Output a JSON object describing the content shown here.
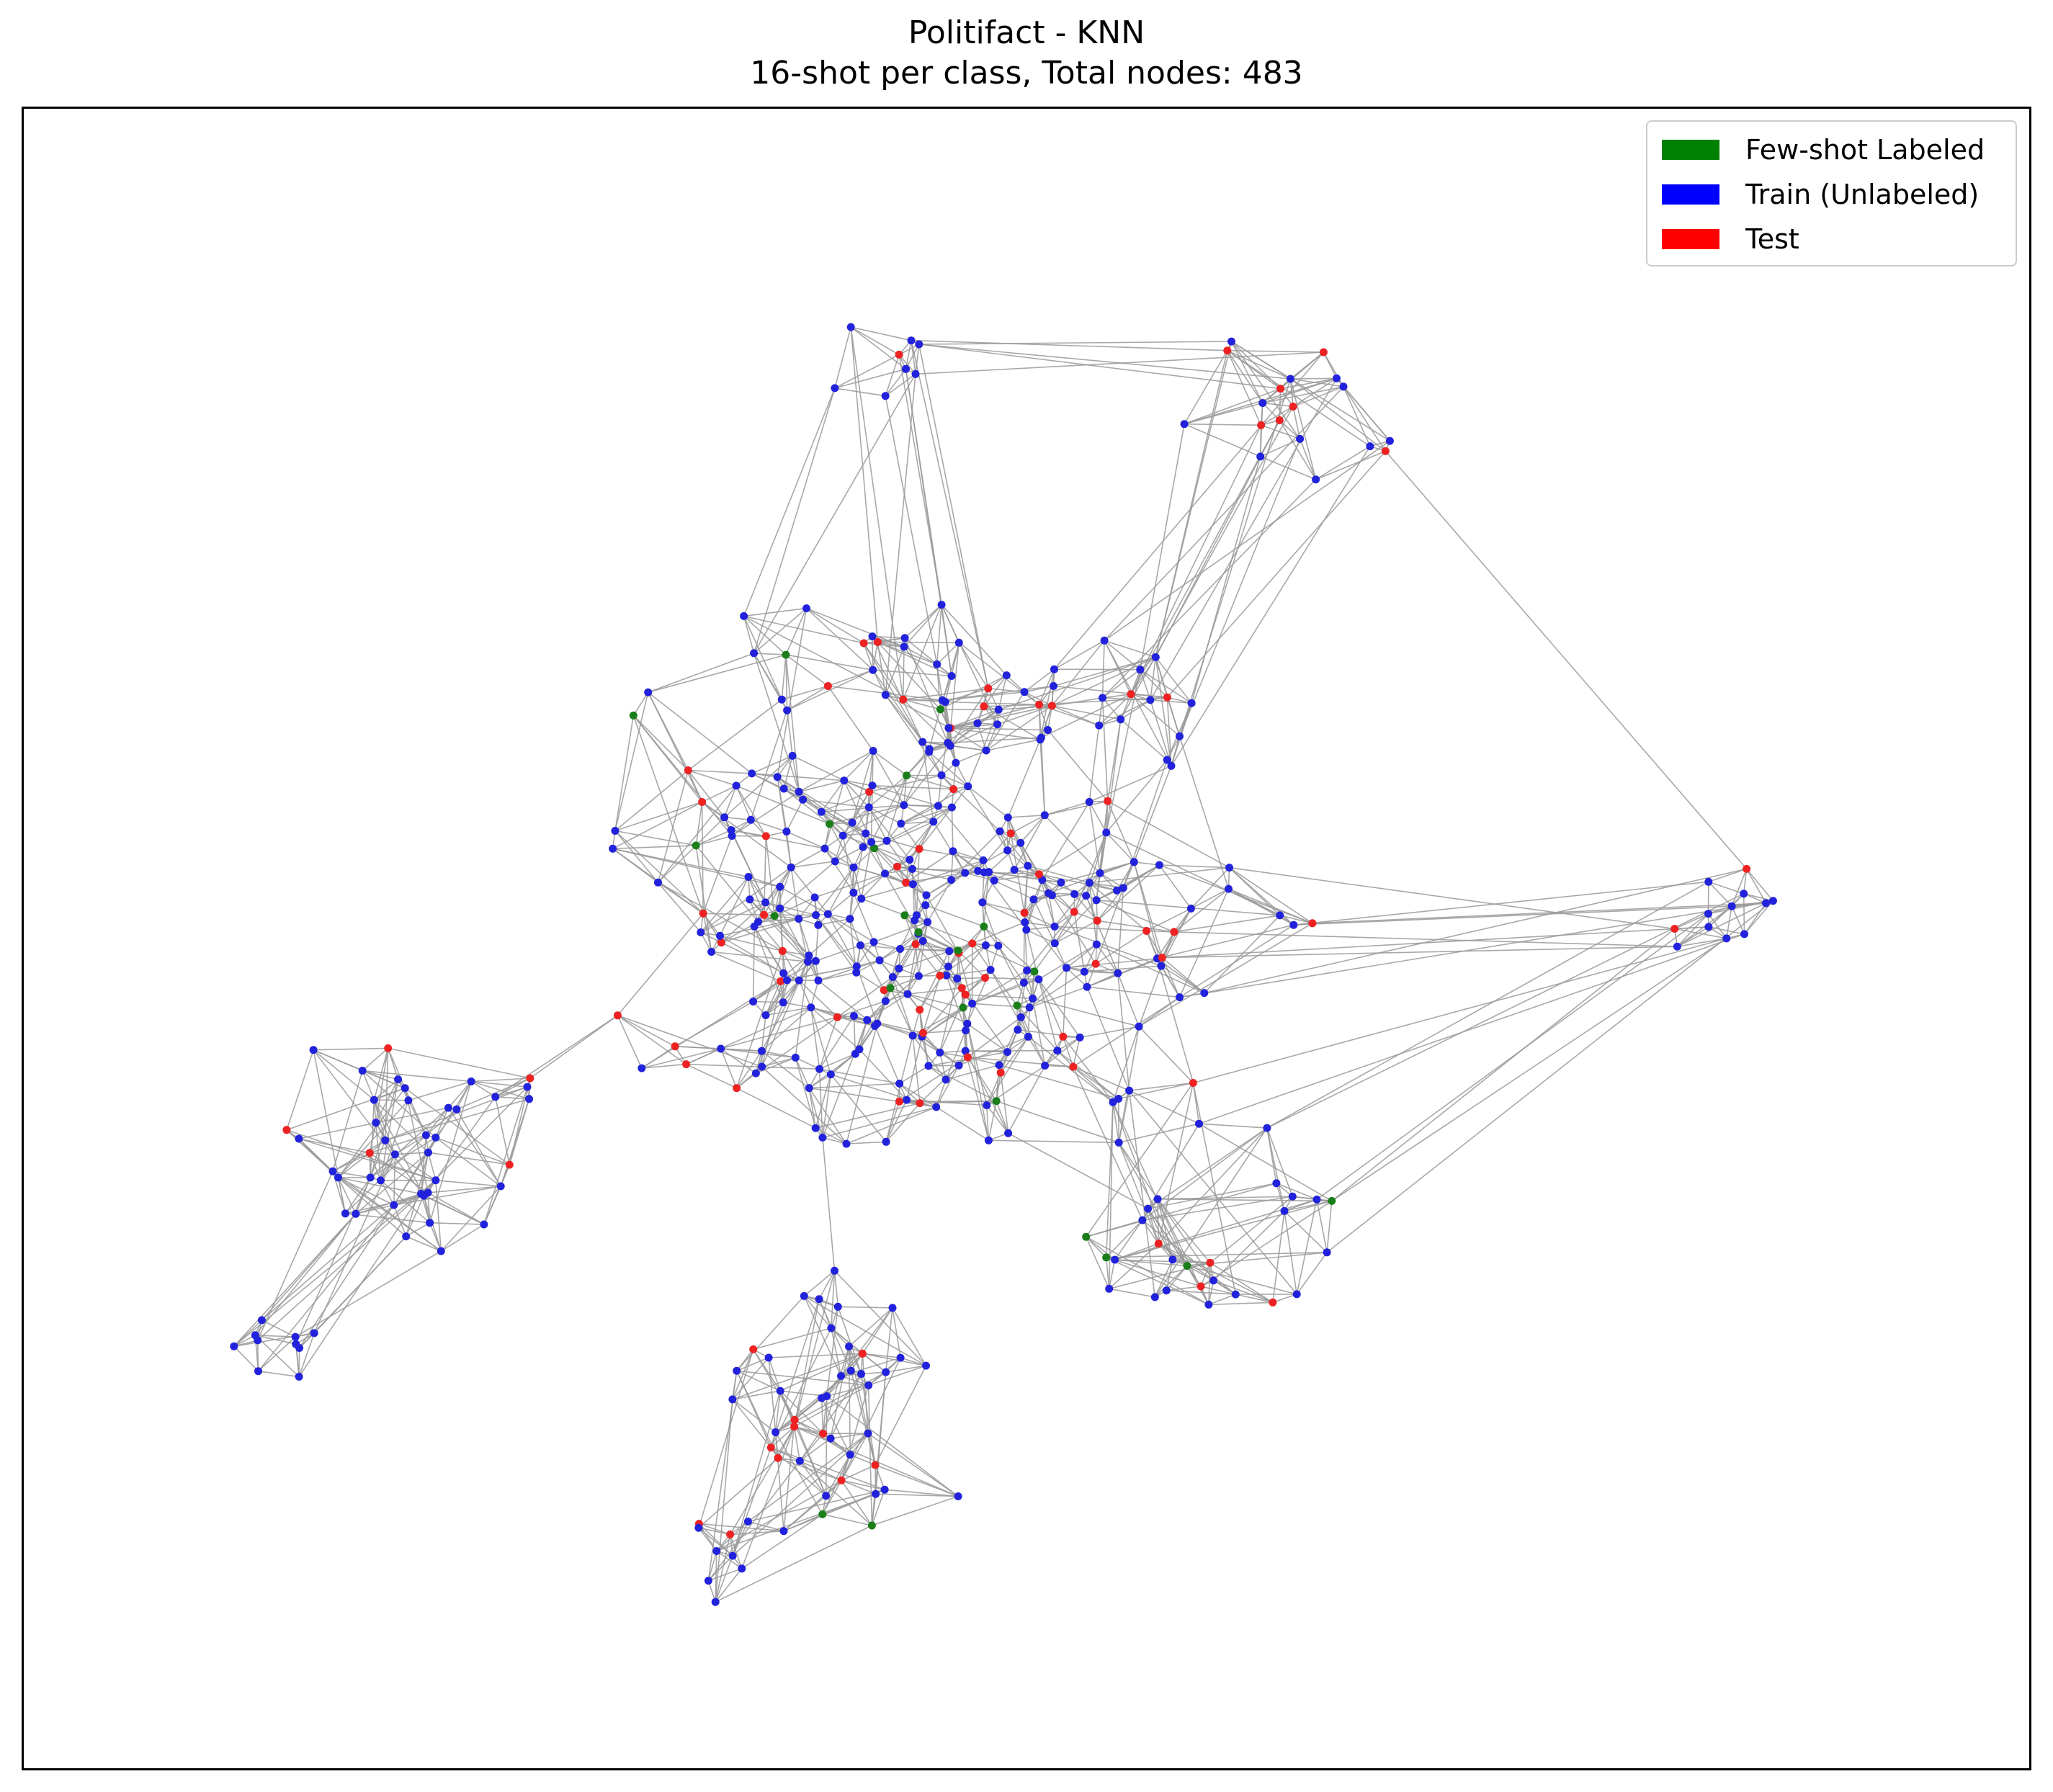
{
  "title": {
    "line1": "Politifact - KNN",
    "line2": "16-shot per class, Total nodes: 483"
  },
  "legend": {
    "items": [
      {
        "label": "Few-shot Labeled",
        "color": "#008000"
      },
      {
        "label": "Train (Unlabeled)",
        "color": "#0000ff"
      },
      {
        "label": "Test",
        "color": "#ff0000"
      }
    ],
    "placement": "top-right"
  },
  "colors": {
    "labeled": "#1a7f1a",
    "train": "#2222dd",
    "test": "#ee2222",
    "edge": "#999999"
  }
}
